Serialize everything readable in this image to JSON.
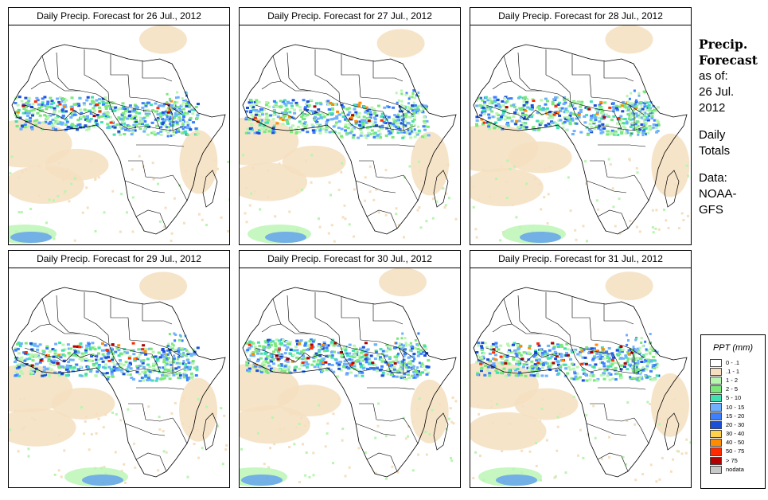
{
  "panels": [
    {
      "title": "Daily Precip. Forecast for  26 Jul., 2012"
    },
    {
      "title": "Daily Precip. Forecast for  27 Jul., 2012"
    },
    {
      "title": "Daily Precip. Forecast for  28 Jul., 2012"
    },
    {
      "title": "Daily Precip. Forecast for  29 Jul., 2012"
    },
    {
      "title": "Daily Precip. Forecast for  30 Jul., 2012"
    },
    {
      "title": "Daily Precip. Forecast for  31 Jul., 2012"
    }
  ],
  "sidebar": {
    "title_line1": "Precip.",
    "title_line2": "Forecast",
    "asof_line1": "as of:",
    "asof_line2": "26 Jul.",
    "asof_line3": "2012",
    "totals_line1": "Daily",
    "totals_line2": "Totals",
    "data_line1": "Data:",
    "data_line2": "NOAA-",
    "data_line3": "GFS"
  },
  "legend": {
    "title": "PPT (mm)",
    "classes": [
      {
        "label": "0 - .1",
        "color": "#ffffff"
      },
      {
        "label": ".1 - 1",
        "color": "#f5dfc0"
      },
      {
        "label": "1 - 2",
        "color": "#b8f5b0"
      },
      {
        "label": "2 - 5",
        "color": "#7ae87a"
      },
      {
        "label": "5 - 10",
        "color": "#40e0b0"
      },
      {
        "label": "10 - 15",
        "color": "#6fb0ff"
      },
      {
        "label": "15 - 20",
        "color": "#3c80ff"
      },
      {
        "label": "20 - 30",
        "color": "#1c4fd8"
      },
      {
        "label": "30 - 40",
        "color": "#ffd24a"
      },
      {
        "label": "40 - 50",
        "color": "#ff8c00"
      },
      {
        "label": "50 - 75",
        "color": "#ff2a00"
      },
      {
        "label": "> 75",
        "color": "#b30000"
      },
      {
        "label": "nodata",
        "color": "#c8c8c8"
      }
    ]
  }
}
